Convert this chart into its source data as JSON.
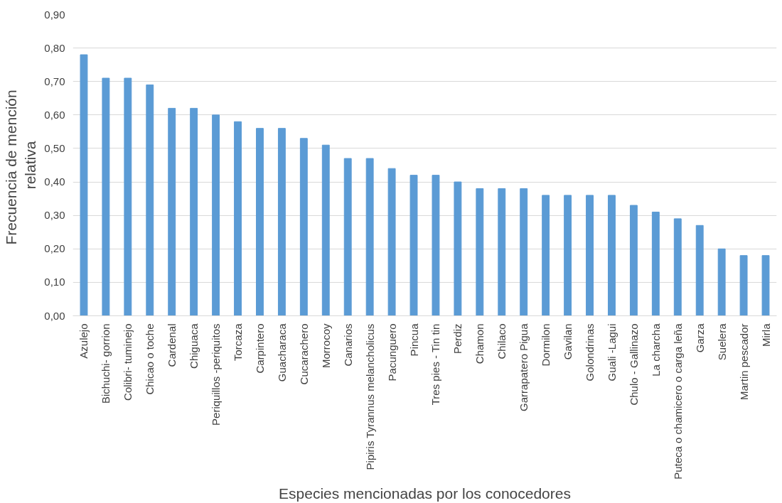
{
  "chart_data": {
    "type": "bar",
    "xlabel": "Especies mencionadas por los conocedores",
    "ylabel": "Frecuencia  de mención\nrelativa",
    "categories": [
      "Azulejo",
      "Bichuchi- gorrion",
      "Colibri- tuminejo",
      "Chicao o toche",
      "Cardenal",
      "Chiguaca",
      "Periquillos -periquitos",
      "Torcaza",
      "Carpintero",
      "Guacharaca",
      "Cucarachero",
      "Morrocoy",
      "Canarios",
      "Pipiris Tyrannus melancholicus",
      "Pacunguero",
      "Pincua",
      "Tres pies - Tin tin",
      "Perdiz",
      "Chamon",
      "Chilaco",
      "Garrapatero Pigua",
      "Dormilon",
      "Gavilan",
      "Golondrinas",
      "Guali -Lagui",
      "Chulo - Gallinazo",
      "La charcha",
      "Puteca o chamicero o carga leña",
      "Garza",
      "Suelera",
      "Martin pescador",
      "Mirla"
    ],
    "values": [
      0.78,
      0.71,
      0.71,
      0.69,
      0.62,
      0.62,
      0.6,
      0.58,
      0.56,
      0.56,
      0.53,
      0.51,
      0.47,
      0.47,
      0.44,
      0.42,
      0.42,
      0.4,
      0.38,
      0.38,
      0.38,
      0.36,
      0.36,
      0.36,
      0.36,
      0.33,
      0.31,
      0.29,
      0.27,
      0.2,
      0.18,
      0.18
    ],
    "color": "#5b9bd5",
    "ylim": [
      0,
      0.9
    ],
    "yticks": [
      {
        "value": 0,
        "label": "0,00"
      },
      {
        "value": 0.1,
        "label": "0,10"
      },
      {
        "value": 0.2,
        "label": "0,20"
      },
      {
        "value": 0.3,
        "label": "0,30"
      },
      {
        "value": 0.4,
        "label": "0,40"
      },
      {
        "value": 0.5,
        "label": "0,50"
      },
      {
        "value": 0.6,
        "label": "0,60"
      },
      {
        "value": 0.7,
        "label": "0,70"
      },
      {
        "value": 0.8,
        "label": "0,80"
      },
      {
        "value": 0.9,
        "label": "0,90"
      }
    ],
    "grid": "y"
  }
}
